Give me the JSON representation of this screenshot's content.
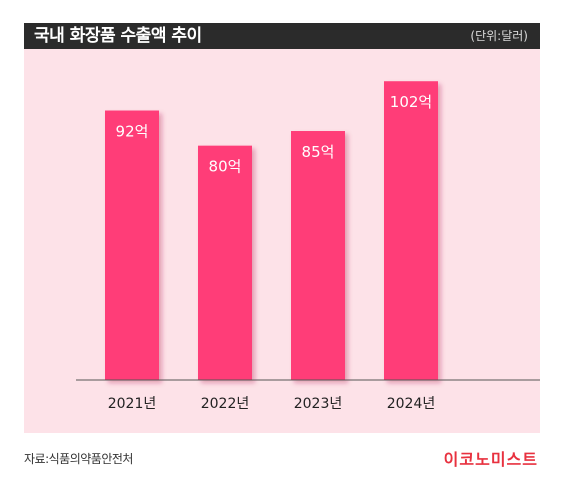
{
  "header": {
    "title": "국내 화장품 수출액 추이",
    "unit": "(단위:달러)"
  },
  "chart_data": {
    "type": "bar",
    "title": "국내 화장품 수출액 추이",
    "unit": "(단위:달러)",
    "categories": [
      "2021년",
      "2022년",
      "2023년",
      "2024년"
    ],
    "values": [
      92,
      80,
      85,
      102
    ],
    "data_labels": [
      "92억",
      "80억",
      "85억",
      "102억"
    ],
    "ylim": [
      0,
      113
    ],
    "grid": false,
    "bar_color": "#ff3d78",
    "background_color": "#fde2e8"
  },
  "footer": {
    "source": "자료:식품의약품안전처",
    "logo": "이코노미스트"
  }
}
